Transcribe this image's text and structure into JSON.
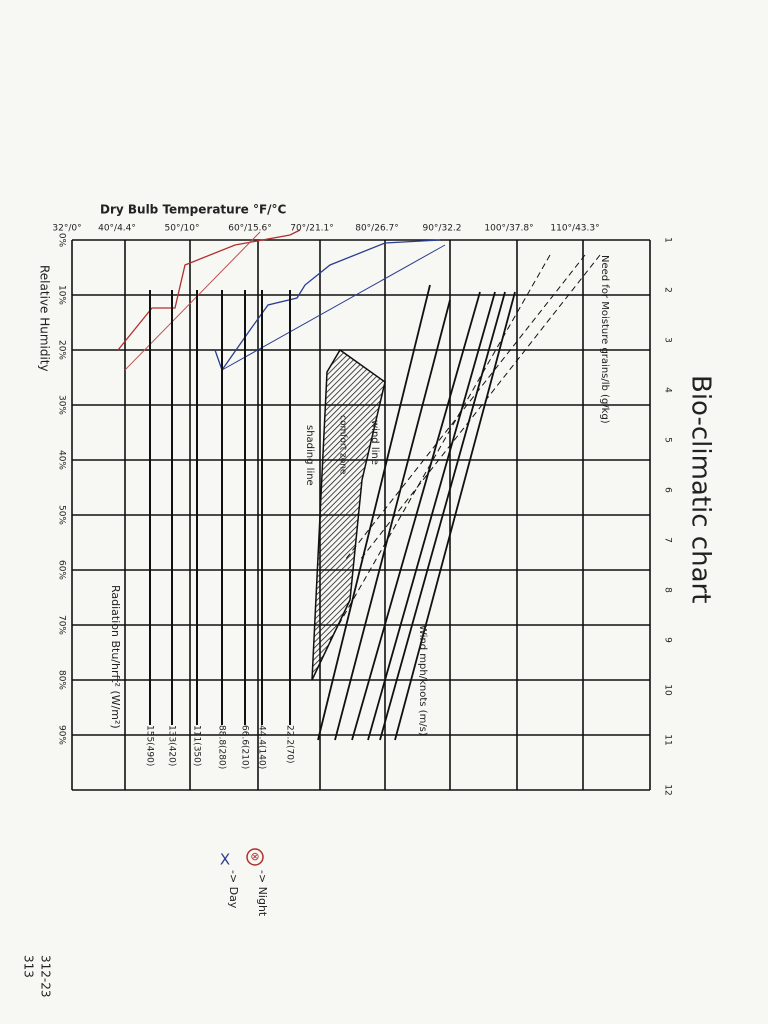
{
  "title": "Bio-climatic chart",
  "top_axis": {
    "label": "Dry Bulb Temperature °F/°C",
    "ticks": [
      "32°/0°",
      "40°/4.4°",
      "50°/10°",
      "60°/15.6°",
      "70°/21.1°",
      "80°/26.7°",
      "90°/32.2",
      "100°/37.8°",
      "110°/43.3°"
    ]
  },
  "left_axis": {
    "label": "Relative Humidity",
    "ticks": [
      "0%",
      "10%",
      "20%",
      "30%",
      "40%",
      "50%",
      "60%",
      "70%",
      "80%",
      "90%"
    ]
  },
  "right_axis": {
    "label": "Need for Moisture grains/lb (g/kg)",
    "ticks": [
      "1",
      "2",
      "3",
      "4",
      "5",
      "6",
      "7",
      "8",
      "9",
      "10",
      "11",
      "12"
    ]
  },
  "radiation": {
    "label": "Radiation Btu/hrft² (W/m²)",
    "ticks": [
      "155(490)",
      "133(420)",
      "111(350)",
      "88.8(280)",
      "66.6(210)",
      "44.4(140)",
      "22.2(70)"
    ]
  },
  "wind": {
    "label": "Wind mph/knots (m/s)"
  },
  "zones": [
    "shading line",
    "comfort zone",
    "wind line"
  ],
  "legend": [
    {
      "symbol": "⊗",
      "label": "-> Night"
    },
    {
      "symbol": "X",
      "label": "-> Day"
    }
  ],
  "notes": [
    "312-23",
    "313"
  ]
}
